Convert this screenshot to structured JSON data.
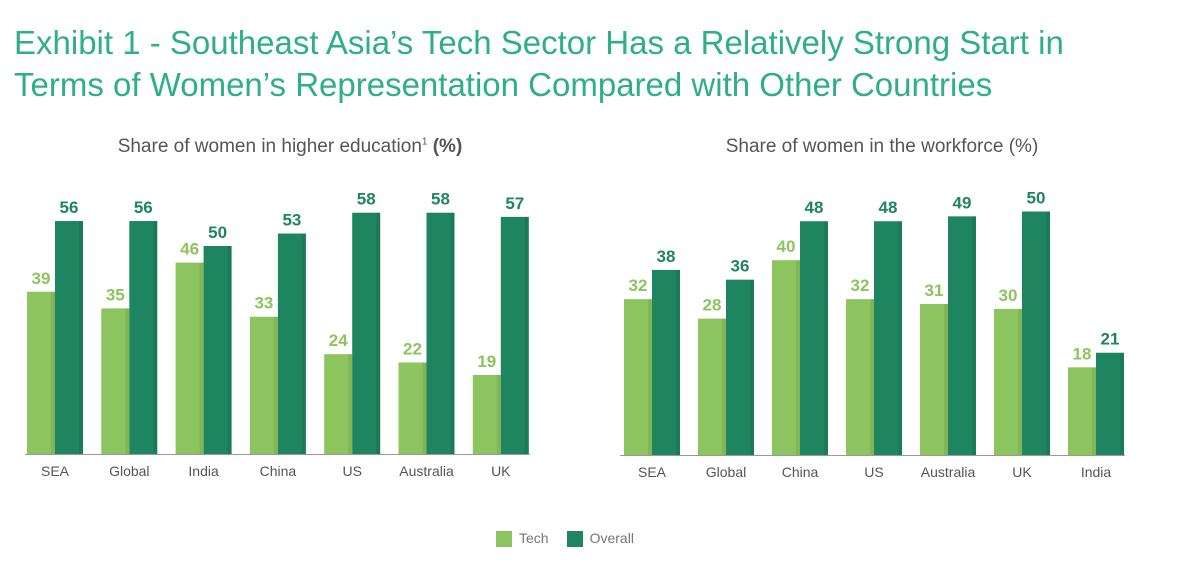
{
  "title_line1": "Exhibit 1 - Southeast Asia’s Tech Sector Has a Relatively Strong Start in",
  "title_line2": "Terms of Women’s Representation Compared with Other Countries",
  "colors": {
    "title": "#2fae8a",
    "tech": "#8cc55f",
    "overall": "#1e8560"
  },
  "legend": [
    "Tech",
    "Overall"
  ],
  "chart_data": [
    {
      "type": "bar",
      "title": "Share of women in higher education",
      "title_footnote": "1",
      "title_unit": "(%)",
      "categories": [
        "SEA",
        "Global",
        "India",
        "China",
        "US",
        "Australia",
        "UK"
      ],
      "series": [
        {
          "name": "Tech",
          "values": [
            39,
            35,
            46,
            33,
            24,
            22,
            19
          ]
        },
        {
          "name": "Overall",
          "values": [
            56,
            56,
            50,
            53,
            58,
            58,
            57
          ]
        }
      ],
      "grid": false
    },
    {
      "type": "bar",
      "title": "Share of women in the workforce (%)",
      "categories": [
        "SEA",
        "Global",
        "China",
        "US",
        "Australia",
        "UK",
        "India"
      ],
      "series": [
        {
          "name": "Tech",
          "values": [
            32,
            28,
            40,
            32,
            31,
            30,
            18
          ]
        },
        {
          "name": "Overall",
          "values": [
            38,
            36,
            48,
            48,
            49,
            50,
            21
          ]
        }
      ],
      "grid": false
    }
  ]
}
